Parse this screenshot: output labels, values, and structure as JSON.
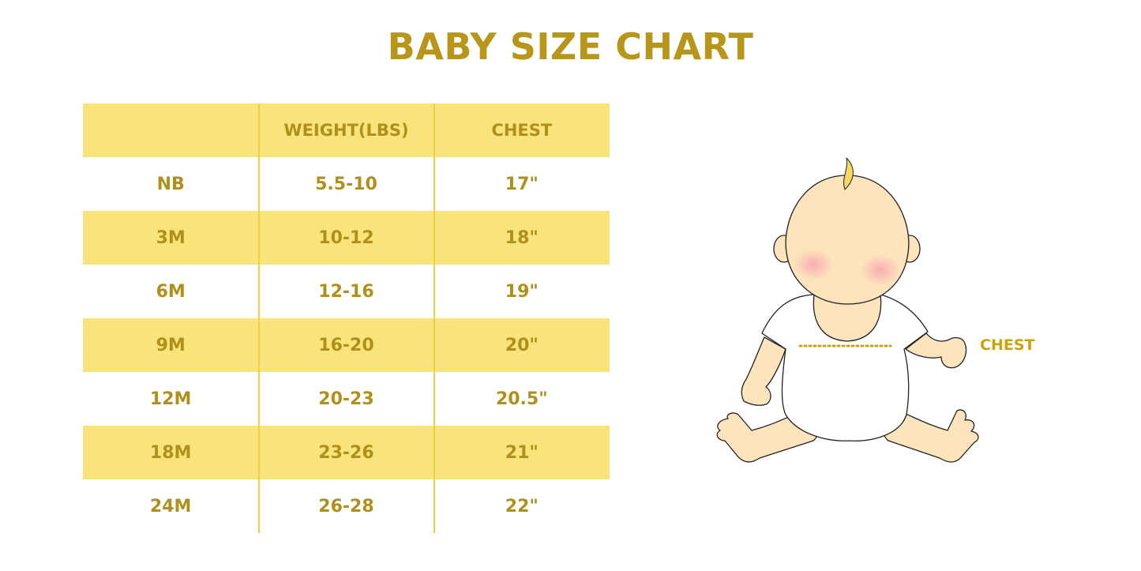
{
  "title": "BABY SIZE CHART",
  "table": {
    "headers": [
      "",
      "WEIGHT(LBS)",
      "CHEST"
    ],
    "rows": [
      [
        "NB",
        "5.5-10",
        "17\""
      ],
      [
        "3M",
        "10-12",
        "18\""
      ],
      [
        "6M",
        "12-16",
        "19\""
      ],
      [
        "9M",
        "16-20",
        "20\""
      ],
      [
        "12M",
        "20-23",
        "20.5\""
      ],
      [
        "18M",
        "23-26",
        "21\""
      ],
      [
        "24M",
        "26-28",
        "22\""
      ]
    ]
  },
  "illustration": {
    "chest_label": "CHEST"
  },
  "colors": {
    "title": "#b8961a",
    "band": "#f9e47c",
    "text": "#b08f1a",
    "divider": "#f2cf40"
  }
}
